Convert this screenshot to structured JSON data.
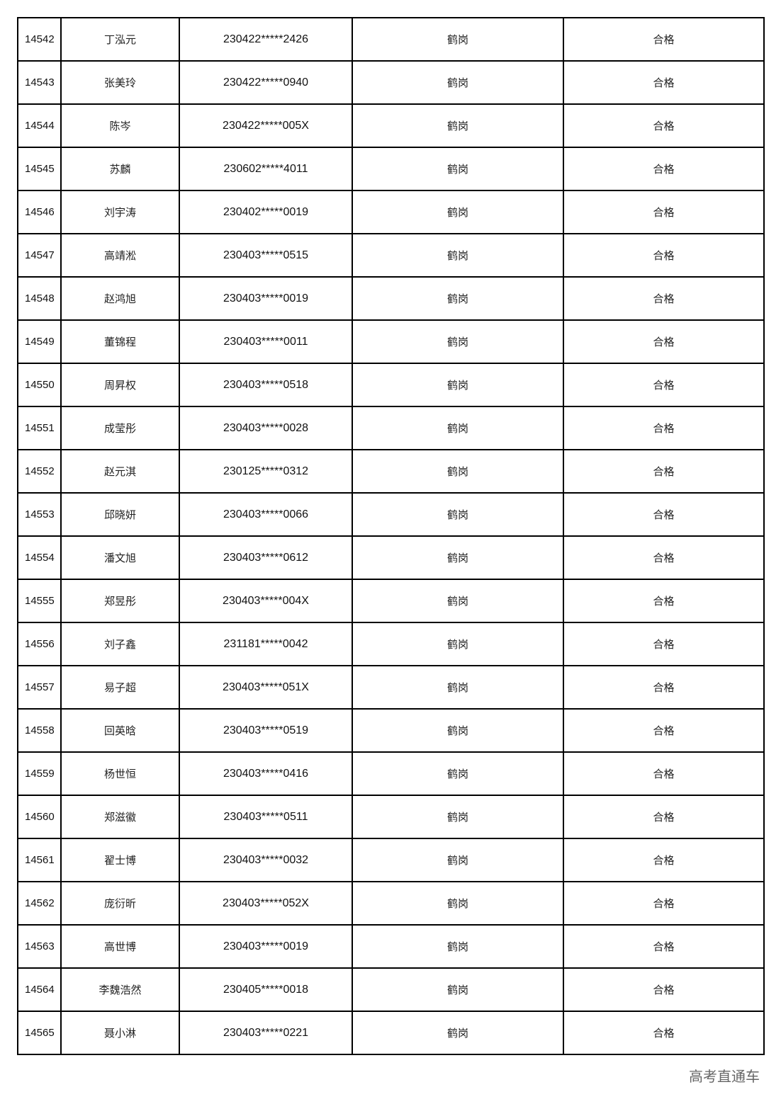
{
  "rows": [
    {
      "no": "14542",
      "name": "丁泓元",
      "id": "230422*****2426",
      "city": "鹤岗",
      "result": "合格"
    },
    {
      "no": "14543",
      "name": "张美玲",
      "id": "230422*****0940",
      "city": "鹤岗",
      "result": "合格"
    },
    {
      "no": "14544",
      "name": "陈岑",
      "id": "230422*****005X",
      "city": "鹤岗",
      "result": "合格"
    },
    {
      "no": "14545",
      "name": "苏麟",
      "id": "230602*****4011",
      "city": "鹤岗",
      "result": "合格"
    },
    {
      "no": "14546",
      "name": "刘宇涛",
      "id": "230402*****0019",
      "city": "鹤岗",
      "result": "合格"
    },
    {
      "no": "14547",
      "name": "高靖淞",
      "id": "230403*****0515",
      "city": "鹤岗",
      "result": "合格"
    },
    {
      "no": "14548",
      "name": "赵鸿旭",
      "id": "230403*****0019",
      "city": "鹤岗",
      "result": "合格"
    },
    {
      "no": "14549",
      "name": "董锦程",
      "id": "230403*****0011",
      "city": "鹤岗",
      "result": "合格"
    },
    {
      "no": "14550",
      "name": "周昇权",
      "id": "230403*****0518",
      "city": "鹤岗",
      "result": "合格"
    },
    {
      "no": "14551",
      "name": "成莹彤",
      "id": "230403*****0028",
      "city": "鹤岗",
      "result": "合格"
    },
    {
      "no": "14552",
      "name": "赵元淇",
      "id": "230125*****0312",
      "city": "鹤岗",
      "result": "合格"
    },
    {
      "no": "14553",
      "name": "邱晓妍",
      "id": "230403*****0066",
      "city": "鹤岗",
      "result": "合格"
    },
    {
      "no": "14554",
      "name": "潘文旭",
      "id": "230403*****0612",
      "city": "鹤岗",
      "result": "合格"
    },
    {
      "no": "14555",
      "name": "郑昱彤",
      "id": "230403*****004X",
      "city": "鹤岗",
      "result": "合格"
    },
    {
      "no": "14556",
      "name": "刘子鑫",
      "id": "231181*****0042",
      "city": "鹤岗",
      "result": "合格"
    },
    {
      "no": "14557",
      "name": "易子超",
      "id": "230403*****051X",
      "city": "鹤岗",
      "result": "合格"
    },
    {
      "no": "14558",
      "name": "回英晗",
      "id": "230403*****0519",
      "city": "鹤岗",
      "result": "合格"
    },
    {
      "no": "14559",
      "name": "杨世恒",
      "id": "230403*****0416",
      "city": "鹤岗",
      "result": "合格"
    },
    {
      "no": "14560",
      "name": "郑滋徽",
      "id": "230403*****0511",
      "city": "鹤岗",
      "result": "合格"
    },
    {
      "no": "14561",
      "name": "翟士博",
      "id": "230403*****0032",
      "city": "鹤岗",
      "result": "合格"
    },
    {
      "no": "14562",
      "name": "庞衍昕",
      "id": "230403*****052X",
      "city": "鹤岗",
      "result": "合格"
    },
    {
      "no": "14563",
      "name": "高世博",
      "id": "230403*****0019",
      "city": "鹤岗",
      "result": "合格"
    },
    {
      "no": "14564",
      "name": "李魏浩然",
      "id": "230405*****0018",
      "city": "鹤岗",
      "result": "合格"
    },
    {
      "no": "14565",
      "name": "聂小淋",
      "id": "230403*****0221",
      "city": "鹤岗",
      "result": "合格"
    }
  ],
  "watermark": "高考直通车"
}
